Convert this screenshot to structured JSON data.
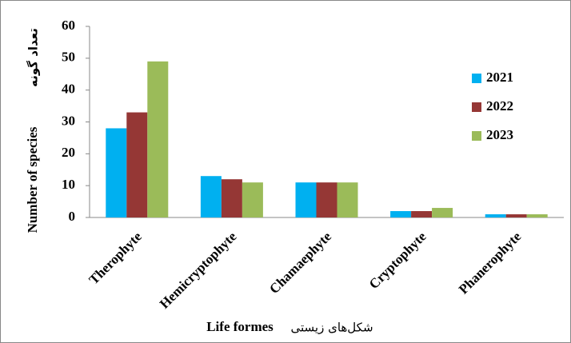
{
  "chart_data": {
    "type": "bar",
    "categories": [
      "Therophyte",
      "Hemicryptophyte",
      "Chamaephyte",
      "Cryptophyte",
      "Phanerophyte"
    ],
    "series": [
      {
        "name": "2021",
        "color": "#00b0f0",
        "values": [
          28,
          13,
          11,
          2,
          1
        ]
      },
      {
        "name": "2022",
        "color": "#953735",
        "values": [
          33,
          12,
          11,
          2,
          1
        ]
      },
      {
        "name": "2023",
        "color": "#9bbb59",
        "values": [
          49,
          11,
          11,
          3,
          1
        ]
      }
    ],
    "ylabel": [
      "Number of species",
      "تعداد گونه"
    ],
    "xlabel": [
      "Life formes",
      "شکل‌های زیستی"
    ],
    "ylim": [
      0,
      60
    ],
    "yticks": [
      0,
      10,
      20,
      30,
      40,
      50,
      60
    ],
    "grid": false,
    "legend": "right"
  }
}
